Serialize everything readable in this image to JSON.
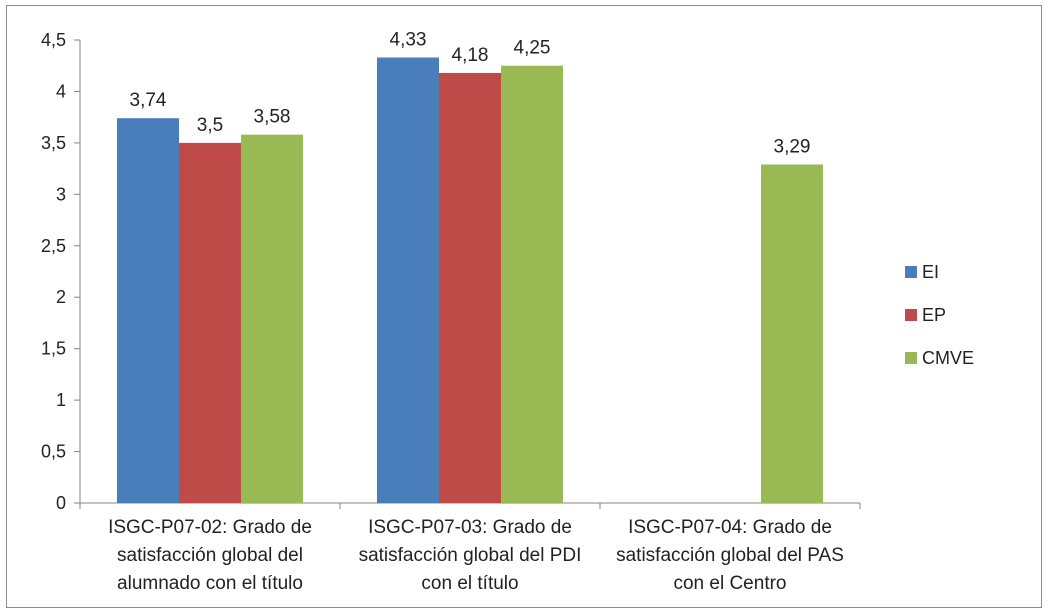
{
  "chart_data": {
    "type": "bar",
    "categories": [
      [
        "ISGC-P07-02: Grado de",
        "satisfacción global del",
        "alumnado con el título"
      ],
      [
        "ISGC-P07-03: Grado de",
        "satisfacción global del PDI",
        "con el título"
      ],
      [
        "ISGC-P07-04: Grado de",
        "satisfacción global del PAS",
        "con el Centro"
      ]
    ],
    "series": [
      {
        "name": "EI",
        "color": "#4a7ebb",
        "values": [
          3.74,
          4.33,
          null
        ],
        "labels": [
          "3,74",
          "4,33",
          ""
        ]
      },
      {
        "name": "EP",
        "color": "#be4b48",
        "values": [
          3.5,
          4.18,
          null
        ],
        "labels": [
          "3,5",
          "4,18",
          ""
        ]
      },
      {
        "name": "CMVE",
        "color": "#98b954",
        "values": [
          3.58,
          4.25,
          3.29
        ],
        "labels": [
          "3,58",
          "4,25",
          "3,29"
        ]
      }
    ],
    "yticks": [
      "0",
      "0,5",
      "1",
      "1,5",
      "2",
      "2,5",
      "3",
      "3,5",
      "4",
      "4,5"
    ],
    "ylim": [
      0,
      4.5
    ],
    "ystep": 0.5,
    "grid": false,
    "legend_position": "right"
  }
}
